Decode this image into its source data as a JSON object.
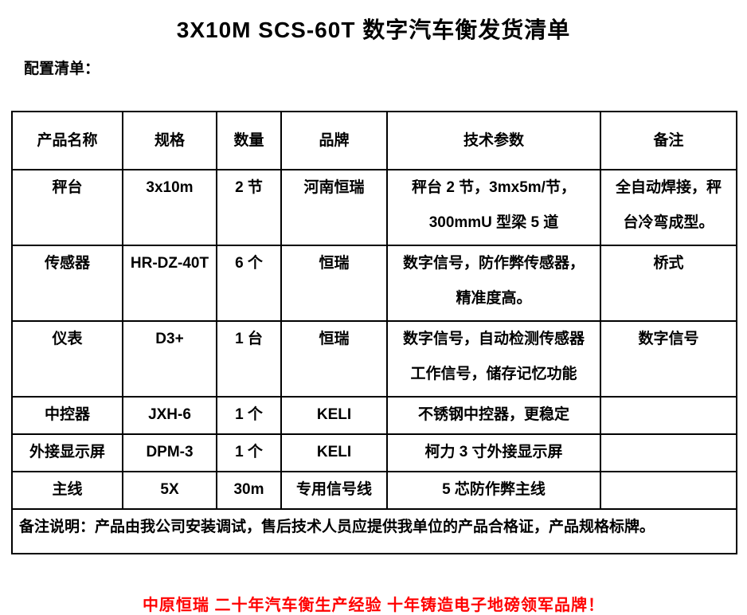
{
  "title": "3X10M SCS-60T 数字汽车衡发货清单",
  "section_label": "配置清单：",
  "table": {
    "headers": {
      "name": "产品名称",
      "spec": "规格",
      "qty": "数量",
      "brand": "品牌",
      "params": "技术参数",
      "note": "备注"
    },
    "rows": [
      {
        "name": "秤台",
        "spec": "3x10m",
        "qty": "2 节",
        "brand": "河南恒瑞",
        "params": "秤台 2 节，3mx5m/节，\n300mmU 型梁 5 道",
        "note": "全自动焊接，秤\n台冷弯成型。"
      },
      {
        "name": "传感器",
        "spec": "HR-DZ-40T",
        "qty": "6 个",
        "brand": "恒瑞",
        "params": "数字信号，防作弊传感器，\n精准度高。",
        "note": "桥式"
      },
      {
        "name": "仪表",
        "spec": "D3+",
        "qty": "1 台",
        "brand": "恒瑞",
        "params": "数字信号，自动检测传感器\n工作信号，储存记忆功能",
        "note": "数字信号"
      },
      {
        "name": "中控器",
        "spec": "JXH-6",
        "qty": "1 个",
        "brand": "KELI",
        "params": "不锈钢中控器，更稳定",
        "note": ""
      },
      {
        "name": "外接显示屏",
        "spec": "DPM-3",
        "qty": "1 个",
        "brand": "KELI",
        "params": "柯力 3 寸外接显示屏",
        "note": ""
      },
      {
        "name": "主线",
        "spec": "5X",
        "qty": "30m",
        "brand": "专用信号线",
        "params": "5 芯防作弊主线",
        "note": ""
      }
    ],
    "footer_note": "备注说明：产品由我公司安装调试，售后技术人员应提供我单位的产品合格证，产品规格标牌。"
  },
  "slogan": "中原恒瑞 二十年汽车衡生产经验 十年铸造电子地磅领军品牌！",
  "colors": {
    "text": "#000000",
    "slogan_red": "#FF0000",
    "border": "#000000",
    "background": "#FFFFFF"
  }
}
